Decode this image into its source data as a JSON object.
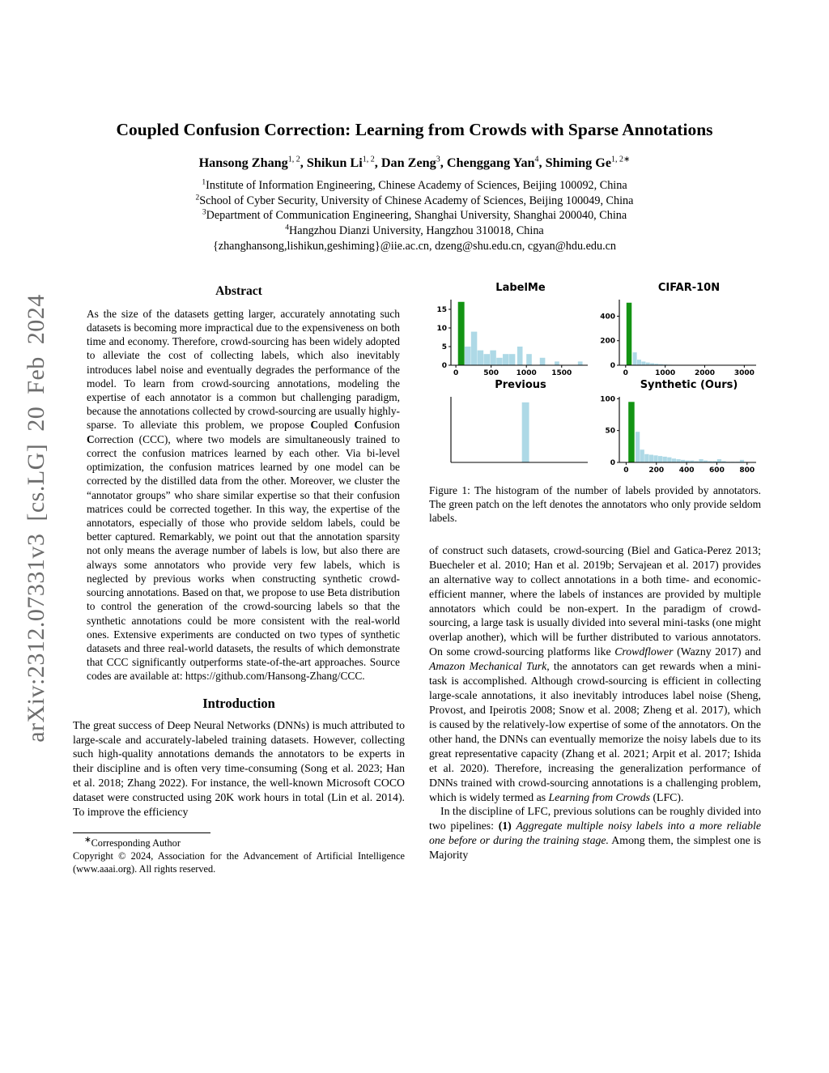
{
  "watermark": {
    "text": "arXiv:2312.07331v3 [cs.LG] 20 Feb 2024"
  },
  "header": {
    "title": "Coupled Confusion Correction: Learning from Crowds with Sparse Annotations",
    "authors": [
      {
        "t": "Hansong Zhang",
        "b": true
      },
      {
        "t": "1, 2",
        "sup": true
      },
      {
        "t": ", ",
        "b": true
      },
      {
        "t": "Shikun Li",
        "b": true
      },
      {
        "t": "1, 2",
        "sup": true
      },
      {
        "t": ", ",
        "b": true
      },
      {
        "t": "Dan Zeng",
        "b": true
      },
      {
        "t": "3",
        "sup": true
      },
      {
        "t": ", ",
        "b": true
      },
      {
        "t": "Chenggang Yan",
        "b": true
      },
      {
        "t": "4",
        "sup": true
      },
      {
        "t": ", ",
        "b": true
      },
      {
        "t": "Shiming Ge",
        "b": true
      },
      {
        "t": "1, 2∗",
        "sup": true
      }
    ],
    "affiliations": [
      [
        {
          "t": "1",
          "sup": true
        },
        {
          "t": "Institute of Information Engineering, Chinese Academy of Sciences, Beijing 100092, China"
        }
      ],
      [
        {
          "t": "2",
          "sup": true
        },
        {
          "t": "School of Cyber Security, University of Chinese Academy of Sciences, Beijing 100049, China"
        }
      ],
      [
        {
          "t": "3",
          "sup": true
        },
        {
          "t": "Department of Communication Engineering, Shanghai University, Shanghai 200040, China"
        }
      ],
      [
        {
          "t": "4",
          "sup": true
        },
        {
          "t": "Hangzhou Dianzi University, Hangzhou 310018, China"
        }
      ]
    ],
    "emails": "{zhanghansong,lishikun,geshiming}@iie.ac.cn, dzeng@shu.edu.cn, cgyan@hdu.edu.cn"
  },
  "abstract": {
    "heading": "Abstract",
    "paragraph": [
      {
        "t": "As the size of the datasets getting larger, accurately annotating such datasets is becoming more impractical due to the expensiveness on both time and economy. Therefore, crowd-sourcing has been widely adopted to alleviate the cost of collecting labels, which also inevitably introduces label noise and eventually degrades the performance of the model. To learn from crowd-sourcing annotations, modeling the expertise of each annotator is a common but challenging paradigm, because the annotations collected by crowd-sourcing are usually highly-sparse. To alleviate this problem, we propose "
      },
      {
        "t": "C",
        "b": true
      },
      {
        "t": "oupled "
      },
      {
        "t": "C",
        "b": true
      },
      {
        "t": "onfusion "
      },
      {
        "t": "C",
        "b": true
      },
      {
        "t": "orrection (CCC), where two models are simultaneously trained to correct the confusion matrices learned by each other. Via bi-level optimization, the confusion matrices learned by one model can be corrected by the distilled data from the other. Moreover, we cluster the “annotator groups” who share similar expertise so that their confusion matrices could be corrected together. In this way, the expertise of the annotators, especially of those who provide seldom labels, could be better captured. Remarkably, we point out that the annotation sparsity not only means the average number of labels is low, but also there are always some annotators who provide very few labels, which is neglected by previous works when constructing synthetic crowd-sourcing annotations. Based on that, we propose to use Beta distribution to control the generation of the crowd-sourcing labels so that the synthetic annotations could be more consistent with the real-world ones. Extensive experiments are conducted on two types of synthetic datasets and three real-world datasets, the results of which demonstrate that CCC significantly outperforms state-of-the-art approaches. Source codes are available at: https://github.com/Hansong-Zhang/CCC."
      }
    ]
  },
  "introduction": {
    "heading": "Introduction",
    "paragraph": [
      {
        "t": "The great success of Deep Neural Networks (DNNs) is much attributed to large-scale and accurately-labeled training datasets. However, collecting such high-quality annotations demands the annotators to be experts in their discipline and is often very time-consuming (Song et al. 2023; Han et al. 2018; Zhang 2022). For instance, the well-known Microsoft COCO dataset were constructed using 20K work hours in total (Lin et al. 2014). To improve the efficiency"
      }
    ]
  },
  "footnote": {
    "corresponding": [
      {
        "t": "∗",
        "sup": true
      },
      {
        "t": "Corresponding Author"
      }
    ],
    "copyright": [
      {
        "t": "Copyright © 2024, Association for the Advancement of Artificial Intelligence (www.aaai.org). All rights reserved."
      }
    ]
  },
  "figure1": {
    "caption": "Figure 1: The histogram of the number of labels provided by annotators. The green patch on the left denotes the annotators who only provide seldom labels."
  },
  "body": {
    "paragraph1": [
      {
        "t": "of construct such datasets, crowd-sourcing (Biel and Gatica-Perez 2013; Buecheler et al. 2010; Han et al. 2019b; Servajean et al. 2017) provides an alternative way to collect annotations in a both time- and economic-efficient manner, where the labels of instances are provided by multiple annotators which could be non-expert. In the paradigm of crowd-sourcing, a large task is usually divided into several mini-tasks (one might overlap another), which will be further distributed to various annotators. On some crowd-sourcing platforms like "
      },
      {
        "t": "Crowdflower",
        "i": true
      },
      {
        "t": " (Wazny 2017) and "
      },
      {
        "t": "Amazon Mechanical Turk",
        "i": true
      },
      {
        "t": ", the annotators can get rewards when a mini-task is accomplished. Although crowd-sourcing is efficient in collecting large-scale annotations, it also inevitably introduces label noise (Sheng, Provost, and Ipeirotis 2008; Snow et al. 2008; Zheng et al. 2017), which is caused by the relatively-low expertise of some of the annotators. On the other hand, the DNNs can eventually memorize the noisy labels due to its great representative capacity (Zhang et al. 2021; Arpit et al. 2017; Ishida et al. 2020). Therefore, increasing the generalization performance of DNNs trained with crowd-sourcing annotations is a challenging problem, which is widely termed as "
      },
      {
        "t": "Learning from Crowds",
        "i": true
      },
      {
        "t": " (LFC)."
      }
    ],
    "paragraph2": [
      {
        "t": "In the discipline of LFC, previous solutions can be roughly divided into two pipelines: "
      },
      {
        "t": "(1) ",
        "b": true
      },
      {
        "t": "Aggregate multiple noisy labels into a more reliable one before or during the training stage.",
        "i": true
      },
      {
        "t": " Among them, the simplest one is Majority"
      }
    ]
  },
  "chart_data": [
    {
      "type": "bar",
      "title": "LabelMe",
      "xlabel": "",
      "ylabel": "",
      "xlim": [
        -70,
        1870
      ],
      "ylim": [
        0,
        17.6
      ],
      "xticks": [
        0,
        500,
        1000,
        1500
      ],
      "yticks": [
        0,
        5,
        10,
        15
      ],
      "green_color": "#149414",
      "bar_color": "#aed9e6",
      "note": "bars are [x,width,height,isGreen]",
      "bars": [
        [
          30,
          95,
          17,
          1
        ],
        [
          125,
          90,
          5,
          0
        ],
        [
          215,
          90,
          9,
          0
        ],
        [
          305,
          90,
          4,
          0
        ],
        [
          395,
          90,
          3,
          0
        ],
        [
          485,
          90,
          4,
          0
        ],
        [
          575,
          90,
          2,
          0
        ],
        [
          665,
          90,
          3,
          0
        ],
        [
          755,
          90,
          3,
          0
        ],
        [
          870,
          80,
          5,
          0
        ],
        [
          1000,
          80,
          3,
          0
        ],
        [
          1190,
          80,
          2,
          0
        ],
        [
          1400,
          70,
          1,
          0
        ],
        [
          1730,
          70,
          1,
          0
        ]
      ]
    },
    {
      "type": "bar",
      "title": "CIFAR-10N",
      "xlabel": "",
      "ylabel": "",
      "xlim": [
        -160,
        3300
      ],
      "ylim": [
        0,
        535
      ],
      "xticks": [
        0,
        1000,
        2000,
        3000
      ],
      "yticks": [
        0,
        200,
        400
      ],
      "green_color": "#149414",
      "bar_color": "#aed9e6",
      "bars": [
        [
          20,
          140,
          510,
          1
        ],
        [
          180,
          110,
          105,
          0
        ],
        [
          290,
          110,
          45,
          0
        ],
        [
          400,
          110,
          30,
          0
        ],
        [
          510,
          110,
          22,
          0
        ],
        [
          620,
          110,
          16,
          0
        ],
        [
          730,
          110,
          12,
          0
        ],
        [
          840,
          110,
          9,
          0
        ],
        [
          950,
          110,
          6,
          0
        ],
        [
          1060,
          110,
          4,
          0
        ]
      ]
    },
    {
      "type": "bar",
      "title": "Previous",
      "xlabel": "",
      "ylabel": "",
      "xlim": [
        -30,
        1030
      ],
      "ylim": [
        0,
        1.06
      ],
      "xticks": [],
      "yticks": [],
      "green_color": "#149414",
      "bar_color": "#aed9e6",
      "bars": [
        [
          520,
          58,
          0.97,
          0
        ]
      ]
    },
    {
      "type": "bar",
      "title": "Synthetic (Ours)",
      "xlabel": "",
      "ylabel": "",
      "xlim": [
        -45,
        860
      ],
      "ylim": [
        0,
        103
      ],
      "xticks": [
        0,
        200,
        400,
        600,
        800
      ],
      "yticks": [
        0,
        50,
        100
      ],
      "green_color": "#149414",
      "bar_color": "#aed9e6",
      "bars": [
        [
          15,
          42,
          95,
          1
        ],
        [
          62,
          30,
          48,
          0
        ],
        [
          92,
          30,
          20,
          0
        ],
        [
          122,
          30,
          13,
          0
        ],
        [
          152,
          30,
          12,
          0
        ],
        [
          182,
          30,
          11,
          0
        ],
        [
          212,
          30,
          10,
          0
        ],
        [
          242,
          30,
          9,
          0
        ],
        [
          272,
          30,
          8,
          0
        ],
        [
          302,
          30,
          6,
          0
        ],
        [
          332,
          30,
          5,
          0
        ],
        [
          362,
          30,
          4,
          0
        ],
        [
          392,
          30,
          3,
          0
        ],
        [
          422,
          30,
          3,
          0
        ],
        [
          452,
          30,
          2,
          0
        ],
        [
          482,
          30,
          5,
          0
        ],
        [
          512,
          30,
          3,
          0
        ],
        [
          542,
          30,
          2,
          0
        ],
        [
          572,
          30,
          2,
          0
        ],
        [
          602,
          30,
          5,
          0
        ],
        [
          632,
          30,
          2,
          0
        ],
        [
          662,
          30,
          1,
          0
        ],
        [
          692,
          30,
          1,
          0
        ],
        [
          722,
          30,
          1,
          0
        ],
        [
          752,
          30,
          4,
          0
        ]
      ]
    }
  ]
}
